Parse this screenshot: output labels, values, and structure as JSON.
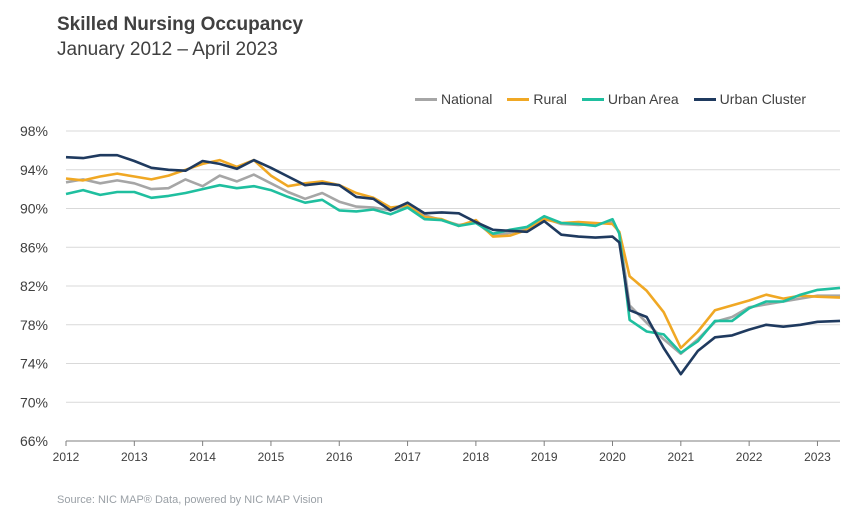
{
  "header": {
    "title": "Skilled Nursing Occupancy",
    "subtitle": "January 2012 –  April 2023"
  },
  "footer": {
    "source": "Source: NIC MAP® Data, powered by NIC MAP Vision"
  },
  "chart_data": {
    "type": "line",
    "title": "Skilled Nursing Occupancy",
    "subtitle": "January 2012 –  April 2023",
    "xlabel": "",
    "ylabel": "",
    "ylim": [
      66,
      98
    ],
    "y_ticks": [
      98,
      94,
      90,
      86,
      82,
      78,
      74,
      70,
      66
    ],
    "y_tick_labels": [
      "98%",
      "94%",
      "90%",
      "86%",
      "82%",
      "78%",
      "74%",
      "70%",
      "66%"
    ],
    "x_ticks": [
      "2012",
      "2013",
      "2014",
      "2015",
      "2016",
      "2017",
      "2018",
      "2019",
      "2020",
      "2021",
      "2022",
      "2023"
    ],
    "xlim": [
      2012.0,
      2023.33
    ],
    "grid": "horizontal",
    "legend": "top-right",
    "series": [
      {
        "name": "National",
        "color": "#a6a6a6",
        "points": [
          [
            2012.0,
            92.7
          ],
          [
            2012.25,
            93.0
          ],
          [
            2012.5,
            92.6
          ],
          [
            2012.75,
            92.9
          ],
          [
            2013.0,
            92.6
          ],
          [
            2013.25,
            92.0
          ],
          [
            2013.5,
            92.1
          ],
          [
            2013.75,
            93.0
          ],
          [
            2014.0,
            92.3
          ],
          [
            2014.25,
            93.4
          ],
          [
            2014.5,
            92.8
          ],
          [
            2014.75,
            93.5
          ],
          [
            2015.0,
            92.6
          ],
          [
            2015.25,
            91.7
          ],
          [
            2015.5,
            91.0
          ],
          [
            2015.75,
            91.6
          ],
          [
            2016.0,
            90.7
          ],
          [
            2016.25,
            90.2
          ],
          [
            2016.5,
            90.1
          ],
          [
            2016.75,
            89.8
          ],
          [
            2017.0,
            90.3
          ],
          [
            2017.25,
            89.3
          ],
          [
            2017.5,
            88.8
          ],
          [
            2017.75,
            88.3
          ],
          [
            2018.0,
            88.6
          ],
          [
            2018.25,
            87.2
          ],
          [
            2018.5,
            87.5
          ],
          [
            2018.75,
            88.0
          ],
          [
            2019.0,
            89.0
          ],
          [
            2019.25,
            88.4
          ],
          [
            2019.5,
            88.3
          ],
          [
            2019.75,
            88.4
          ],
          [
            2020.0,
            88.6
          ],
          [
            2020.1,
            87.5
          ],
          [
            2020.25,
            80.0
          ],
          [
            2020.5,
            78.2
          ],
          [
            2020.75,
            76.5
          ],
          [
            2021.0,
            75.0
          ],
          [
            2021.25,
            76.5
          ],
          [
            2021.5,
            78.3
          ],
          [
            2021.75,
            78.8
          ],
          [
            2022.0,
            79.8
          ],
          [
            2022.25,
            80.1
          ],
          [
            2022.5,
            80.4
          ],
          [
            2022.75,
            80.7
          ],
          [
            2023.0,
            81.0
          ],
          [
            2023.33,
            81.0
          ]
        ]
      },
      {
        "name": "Rural",
        "color": "#f0a824",
        "points": [
          [
            2012.0,
            93.1
          ],
          [
            2012.25,
            92.9
          ],
          [
            2012.5,
            93.3
          ],
          [
            2012.75,
            93.6
          ],
          [
            2013.0,
            93.3
          ],
          [
            2013.25,
            93.0
          ],
          [
            2013.5,
            93.4
          ],
          [
            2013.75,
            94.0
          ],
          [
            2014.0,
            94.6
          ],
          [
            2014.25,
            95.0
          ],
          [
            2014.5,
            94.3
          ],
          [
            2014.75,
            95.0
          ],
          [
            2015.0,
            93.4
          ],
          [
            2015.25,
            92.3
          ],
          [
            2015.5,
            92.6
          ],
          [
            2015.75,
            92.8
          ],
          [
            2016.0,
            92.4
          ],
          [
            2016.25,
            91.6
          ],
          [
            2016.5,
            91.1
          ],
          [
            2016.75,
            90.1
          ],
          [
            2017.0,
            90.3
          ],
          [
            2017.25,
            89.1
          ],
          [
            2017.5,
            88.9
          ],
          [
            2017.75,
            88.2
          ],
          [
            2018.0,
            88.8
          ],
          [
            2018.25,
            87.1
          ],
          [
            2018.5,
            87.2
          ],
          [
            2018.75,
            87.8
          ],
          [
            2019.0,
            88.9
          ],
          [
            2019.25,
            88.5
          ],
          [
            2019.5,
            88.6
          ],
          [
            2019.75,
            88.5
          ],
          [
            2020.0,
            88.4
          ],
          [
            2020.1,
            87.6
          ],
          [
            2020.25,
            83.0
          ],
          [
            2020.5,
            81.5
          ],
          [
            2020.75,
            79.3
          ],
          [
            2021.0,
            75.6
          ],
          [
            2021.25,
            77.3
          ],
          [
            2021.5,
            79.5
          ],
          [
            2021.75,
            80.0
          ],
          [
            2022.0,
            80.5
          ],
          [
            2022.25,
            81.1
          ],
          [
            2022.5,
            80.7
          ],
          [
            2022.75,
            81.0
          ],
          [
            2023.0,
            80.9
          ],
          [
            2023.33,
            80.8
          ]
        ]
      },
      {
        "name": "Urban Area",
        "color": "#1fbf9f",
        "points": [
          [
            2012.0,
            91.5
          ],
          [
            2012.25,
            91.9
          ],
          [
            2012.5,
            91.4
          ],
          [
            2012.75,
            91.7
          ],
          [
            2013.0,
            91.7
          ],
          [
            2013.25,
            91.1
          ],
          [
            2013.5,
            91.3
          ],
          [
            2013.75,
            91.6
          ],
          [
            2014.0,
            92.0
          ],
          [
            2014.25,
            92.4
          ],
          [
            2014.5,
            92.1
          ],
          [
            2014.75,
            92.3
          ],
          [
            2015.0,
            91.9
          ],
          [
            2015.25,
            91.2
          ],
          [
            2015.5,
            90.6
          ],
          [
            2015.75,
            90.9
          ],
          [
            2016.0,
            89.8
          ],
          [
            2016.25,
            89.7
          ],
          [
            2016.5,
            89.9
          ],
          [
            2016.75,
            89.4
          ],
          [
            2017.0,
            90.1
          ],
          [
            2017.25,
            88.9
          ],
          [
            2017.5,
            88.8
          ],
          [
            2017.75,
            88.2
          ],
          [
            2018.0,
            88.5
          ],
          [
            2018.25,
            87.4
          ],
          [
            2018.5,
            87.8
          ],
          [
            2018.75,
            88.1
          ],
          [
            2019.0,
            89.2
          ],
          [
            2019.25,
            88.5
          ],
          [
            2019.5,
            88.4
          ],
          [
            2019.75,
            88.2
          ],
          [
            2020.0,
            88.9
          ],
          [
            2020.1,
            87.4
          ],
          [
            2020.25,
            78.5
          ],
          [
            2020.5,
            77.3
          ],
          [
            2020.75,
            77.0
          ],
          [
            2021.0,
            75.1
          ],
          [
            2021.25,
            76.3
          ],
          [
            2021.5,
            78.4
          ],
          [
            2021.75,
            78.4
          ],
          [
            2022.0,
            79.7
          ],
          [
            2022.25,
            80.4
          ],
          [
            2022.5,
            80.4
          ],
          [
            2022.75,
            81.1
          ],
          [
            2023.0,
            81.6
          ],
          [
            2023.33,
            81.8
          ]
        ]
      },
      {
        "name": "Urban Cluster",
        "color": "#1f3a5f",
        "points": [
          [
            2012.0,
            95.3
          ],
          [
            2012.25,
            95.2
          ],
          [
            2012.5,
            95.5
          ],
          [
            2012.75,
            95.5
          ],
          [
            2013.0,
            94.9
          ],
          [
            2013.25,
            94.2
          ],
          [
            2013.5,
            94.0
          ],
          [
            2013.75,
            93.9
          ],
          [
            2014.0,
            94.9
          ],
          [
            2014.25,
            94.6
          ],
          [
            2014.5,
            94.1
          ],
          [
            2014.75,
            95.0
          ],
          [
            2015.0,
            94.2
          ],
          [
            2015.25,
            93.3
          ],
          [
            2015.5,
            92.4
          ],
          [
            2015.75,
            92.6
          ],
          [
            2016.0,
            92.4
          ],
          [
            2016.25,
            91.2
          ],
          [
            2016.5,
            91.0
          ],
          [
            2016.75,
            89.8
          ],
          [
            2017.0,
            90.6
          ],
          [
            2017.25,
            89.5
          ],
          [
            2017.5,
            89.6
          ],
          [
            2017.75,
            89.5
          ],
          [
            2018.0,
            88.6
          ],
          [
            2018.25,
            87.8
          ],
          [
            2018.5,
            87.7
          ],
          [
            2018.75,
            87.6
          ],
          [
            2019.0,
            88.7
          ],
          [
            2019.25,
            87.3
          ],
          [
            2019.5,
            87.1
          ],
          [
            2019.75,
            87.0
          ],
          [
            2020.0,
            87.1
          ],
          [
            2020.1,
            86.5
          ],
          [
            2020.25,
            79.5
          ],
          [
            2020.5,
            78.8
          ],
          [
            2020.75,
            75.6
          ],
          [
            2021.0,
            72.9
          ],
          [
            2021.25,
            75.3
          ],
          [
            2021.5,
            76.7
          ],
          [
            2021.75,
            76.9
          ],
          [
            2022.0,
            77.5
          ],
          [
            2022.25,
            78.0
          ],
          [
            2022.5,
            77.8
          ],
          [
            2022.75,
            78.0
          ],
          [
            2023.0,
            78.3
          ],
          [
            2023.33,
            78.4
          ]
        ]
      }
    ]
  }
}
